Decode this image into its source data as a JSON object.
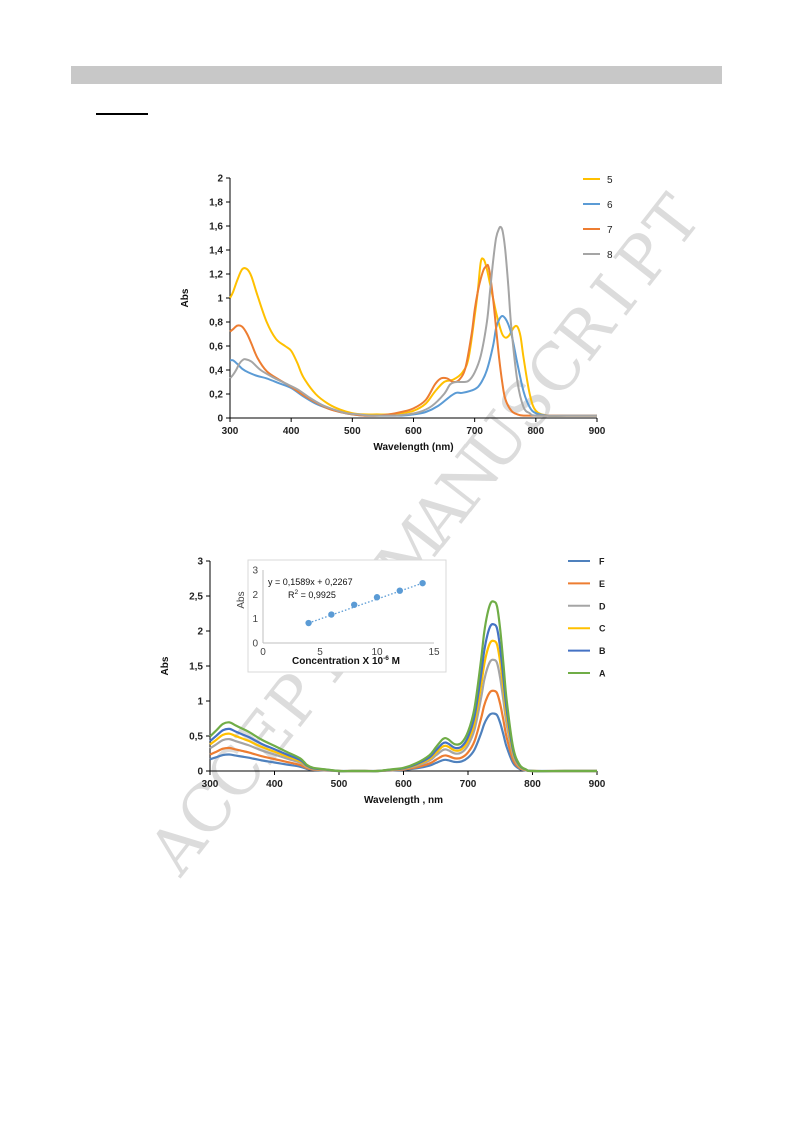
{
  "watermark": [
    "A",
    "C",
    "C",
    "E",
    "P",
    "T",
    "E",
    "D",
    "M",
    "A",
    "N",
    "U",
    "S",
    "C",
    "R",
    "I",
    "P",
    "T"
  ],
  "chart_data": [
    {
      "type": "line",
      "xlabel": "Wavelength (nm)",
      "ylabel": "Abs",
      "xlim": [
        300,
        900
      ],
      "ylim": [
        0,
        2
      ],
      "xticks": [
        "300",
        "400",
        "500",
        "600",
        "700",
        "800",
        "900"
      ],
      "yticks": [
        "0",
        "0,2",
        "0,4",
        "0,6",
        "0,8",
        "1",
        "1,2",
        "1,4",
        "1,6",
        "1,8",
        "2"
      ],
      "grid": false,
      "legend_position": "top-right",
      "series": [
        {
          "name": "5",
          "color": "#FFC000",
          "x": [
            300,
            305,
            312,
            320,
            328,
            335,
            345,
            360,
            375,
            390,
            400,
            410,
            420,
            440,
            460,
            480,
            500,
            520,
            540,
            560,
            580,
            600,
            620,
            635,
            650,
            665,
            680,
            690,
            700,
            705,
            710,
            715,
            720,
            725,
            730,
            735,
            740,
            745,
            750,
            755,
            760,
            765,
            770,
            775,
            780,
            790,
            800,
            820,
            850,
            900
          ],
          "y": [
            1.0,
            1.05,
            1.15,
            1.24,
            1.24,
            1.18,
            1.02,
            0.8,
            0.66,
            0.6,
            0.56,
            0.46,
            0.34,
            0.2,
            0.12,
            0.07,
            0.04,
            0.03,
            0.03,
            0.03,
            0.04,
            0.06,
            0.12,
            0.22,
            0.3,
            0.32,
            0.38,
            0.5,
            0.85,
            1.05,
            1.3,
            1.32,
            1.24,
            1.12,
            1.0,
            0.88,
            0.78,
            0.7,
            0.67,
            0.68,
            0.72,
            0.76,
            0.76,
            0.68,
            0.5,
            0.2,
            0.06,
            0.02,
            0.02,
            0.02
          ]
        },
        {
          "name": "6",
          "color": "#5B9BD5",
          "x": [
            300,
            305,
            312,
            320,
            330,
            345,
            360,
            380,
            400,
            420,
            440,
            460,
            480,
            500,
            520,
            540,
            560,
            580,
            600,
            620,
            640,
            660,
            670,
            680,
            700,
            710,
            720,
            730,
            735,
            740,
            745,
            750,
            755,
            760,
            765,
            770,
            780,
            790,
            800,
            820,
            850,
            900
          ],
          "y": [
            0.48,
            0.48,
            0.45,
            0.41,
            0.38,
            0.35,
            0.33,
            0.29,
            0.25,
            0.18,
            0.12,
            0.08,
            0.05,
            0.03,
            0.02,
            0.02,
            0.02,
            0.02,
            0.03,
            0.05,
            0.1,
            0.18,
            0.21,
            0.21,
            0.24,
            0.29,
            0.4,
            0.6,
            0.75,
            0.82,
            0.85,
            0.83,
            0.78,
            0.7,
            0.58,
            0.45,
            0.22,
            0.09,
            0.04,
            0.02,
            0.02,
            0.02
          ]
        },
        {
          "name": "7",
          "color": "#ED7D31",
          "x": [
            300,
            305,
            312,
            320,
            328,
            335,
            345,
            360,
            380,
            400,
            420,
            440,
            460,
            480,
            500,
            520,
            540,
            560,
            580,
            600,
            620,
            635,
            645,
            655,
            665,
            675,
            685,
            695,
            700,
            705,
            710,
            715,
            720,
            722,
            725,
            730,
            735,
            740,
            745,
            750,
            760,
            770,
            780,
            800,
            850,
            900
          ],
          "y": [
            0.72,
            0.74,
            0.77,
            0.76,
            0.7,
            0.62,
            0.5,
            0.39,
            0.32,
            0.26,
            0.19,
            0.13,
            0.08,
            0.05,
            0.03,
            0.02,
            0.02,
            0.03,
            0.05,
            0.08,
            0.15,
            0.28,
            0.33,
            0.33,
            0.3,
            0.32,
            0.42,
            0.7,
            0.9,
            1.05,
            1.16,
            1.24,
            1.27,
            1.27,
            1.2,
            1.0,
            0.75,
            0.5,
            0.3,
            0.16,
            0.06,
            0.03,
            0.02,
            0.02,
            0.02,
            0.02
          ]
        },
        {
          "name": "8",
          "color": "#A5A5A5",
          "x": [
            300,
            305,
            310,
            315,
            320,
            325,
            335,
            350,
            370,
            390,
            410,
            430,
            450,
            470,
            490,
            510,
            530,
            550,
            570,
            590,
            610,
            630,
            650,
            660,
            670,
            680,
            690,
            700,
            710,
            720,
            725,
            730,
            735,
            740,
            743,
            746,
            750,
            755,
            760,
            770,
            780,
            790,
            800,
            850,
            900
          ],
          "y": [
            0.33,
            0.36,
            0.4,
            0.45,
            0.48,
            0.49,
            0.47,
            0.4,
            0.34,
            0.29,
            0.24,
            0.17,
            0.11,
            0.07,
            0.04,
            0.03,
            0.02,
            0.02,
            0.02,
            0.03,
            0.05,
            0.1,
            0.2,
            0.28,
            0.3,
            0.3,
            0.31,
            0.38,
            0.52,
            0.8,
            1.05,
            1.3,
            1.5,
            1.58,
            1.59,
            1.55,
            1.4,
            1.1,
            0.75,
            0.3,
            0.09,
            0.04,
            0.02,
            0.02,
            0.02
          ]
        }
      ]
    },
    {
      "type": "line",
      "xlabel": "Wavelength , nm",
      "ylabel": "Abs",
      "xlim": [
        300,
        900
      ],
      "ylim": [
        0,
        3
      ],
      "xticks": [
        "300",
        "400",
        "500",
        "600",
        "700",
        "800",
        "900"
      ],
      "yticks": [
        "0",
        "0,5",
        "1",
        "1,5",
        "2",
        "2,5",
        "3"
      ],
      "grid": false,
      "legend_position": "top-right",
      "base_shape": {
        "x": [
          300,
          310,
          320,
          330,
          340,
          350,
          360,
          380,
          400,
          420,
          440,
          450,
          460,
          480,
          500,
          520,
          540,
          560,
          580,
          600,
          620,
          640,
          650,
          660,
          665,
          670,
          680,
          690,
          700,
          710,
          720,
          725,
          730,
          735,
          740,
          745,
          750,
          755,
          760,
          770,
          780,
          790,
          800,
          850,
          900
        ],
        "y": [
          0.22,
          0.26,
          0.3,
          0.31,
          0.29,
          0.27,
          0.25,
          0.2,
          0.16,
          0.12,
          0.08,
          0.04,
          0.02,
          0.01,
          0.0,
          0.0,
          0.0,
          0.0,
          0.01,
          0.02,
          0.05,
          0.1,
          0.15,
          0.2,
          0.21,
          0.2,
          0.17,
          0.18,
          0.25,
          0.4,
          0.7,
          0.88,
          1.0,
          1.07,
          1.08,
          1.05,
          0.9,
          0.68,
          0.45,
          0.15,
          0.04,
          0.01,
          0.0,
          0.0,
          0.0
        ]
      },
      "series": [
        {
          "name": "F",
          "color": "#4F81BD",
          "scale": 0.76
        },
        {
          "name": "E",
          "color": "#ED7D31",
          "scale": 1.06
        },
        {
          "name": "D",
          "color": "#A5A5A5",
          "scale": 1.47
        },
        {
          "name": "C",
          "color": "#FFC000",
          "scale": 1.72
        },
        {
          "name": "B",
          "color": "#4472C4",
          "scale": 1.94
        },
        {
          "name": "A",
          "color": "#70AD47",
          "scale": 2.24
        }
      ]
    },
    {
      "type": "scatter",
      "role": "inset",
      "xlabel": "Concentration X 10",
      "xlabel_exp": "-6",
      "xlabel_unit": " M",
      "ylabel": "Abs",
      "xlim": [
        0,
        15
      ],
      "ylim": [
        0,
        3
      ],
      "xticks": [
        "0",
        "5",
        "10",
        "15"
      ],
      "yticks": [
        "0",
        "1",
        "2",
        "3"
      ],
      "equation": "y = 0,1589x + 0,2267",
      "r2_label": "R",
      "r2_exp": "2",
      "r2_value": " = 0,9925",
      "trendline": "linear dotted",
      "point_color": "#5B9BD5",
      "points": [
        {
          "x": 4,
          "y": 0.82
        },
        {
          "x": 6,
          "y": 1.17
        },
        {
          "x": 8,
          "y": 1.57
        },
        {
          "x": 10,
          "y": 1.88
        },
        {
          "x": 12,
          "y": 2.15
        },
        {
          "x": 14,
          "y": 2.46
        }
      ]
    }
  ]
}
